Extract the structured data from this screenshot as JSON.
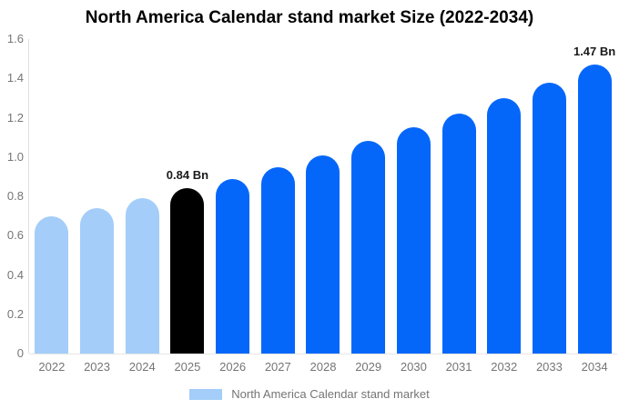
{
  "chart_data": {
    "type": "bar",
    "title": "North America Calendar stand market  Size (2022-2034)",
    "categories": [
      "2022",
      "2023",
      "2024",
      "2025",
      "2026",
      "2027",
      "2028",
      "2029",
      "2030",
      "2031",
      "2032",
      "2033",
      "2034"
    ],
    "values": [
      0.7,
      0.74,
      0.79,
      0.84,
      0.89,
      0.95,
      1.01,
      1.08,
      1.15,
      1.22,
      1.3,
      1.38,
      1.47
    ],
    "unit": "Bn",
    "xlabel": "",
    "ylabel": "",
    "ylim": [
      0,
      1.6
    ],
    "y_ticks": [
      "0",
      "0.2",
      "0.4",
      "0.6",
      "0.8",
      "1.0",
      "1.2",
      "1.4",
      "1.6"
    ],
    "y_tick_values": [
      0,
      0.2,
      0.4,
      0.6,
      0.8,
      1.0,
      1.2,
      1.4,
      1.6
    ],
    "grid": "off",
    "legend_position": "bottom",
    "annotations": [
      {
        "category": "2025",
        "text": "0.84 Bn"
      },
      {
        "category": "2034",
        "text": "1.47 Bn"
      }
    ],
    "point_colors": [
      "#A4CDF9",
      "#A4CDF9",
      "#A4CDF9",
      "#000000",
      "#0567FA",
      "#0567FA",
      "#0567FA",
      "#0567FA",
      "#0567FA",
      "#0567FA",
      "#0567FA",
      "#0567FA",
      "#0567FA"
    ]
  },
  "legend": {
    "label": "North America Calendar stand market",
    "swatch_color": "#A4CDF9"
  },
  "colors": {
    "primary_blue": "#0567FA",
    "light_blue": "#A4CDF9",
    "highlight_black": "#000000",
    "axis_text": "#757575",
    "annotation_text": "#1a1a1a",
    "axis_line": "#e0e0e0"
  }
}
